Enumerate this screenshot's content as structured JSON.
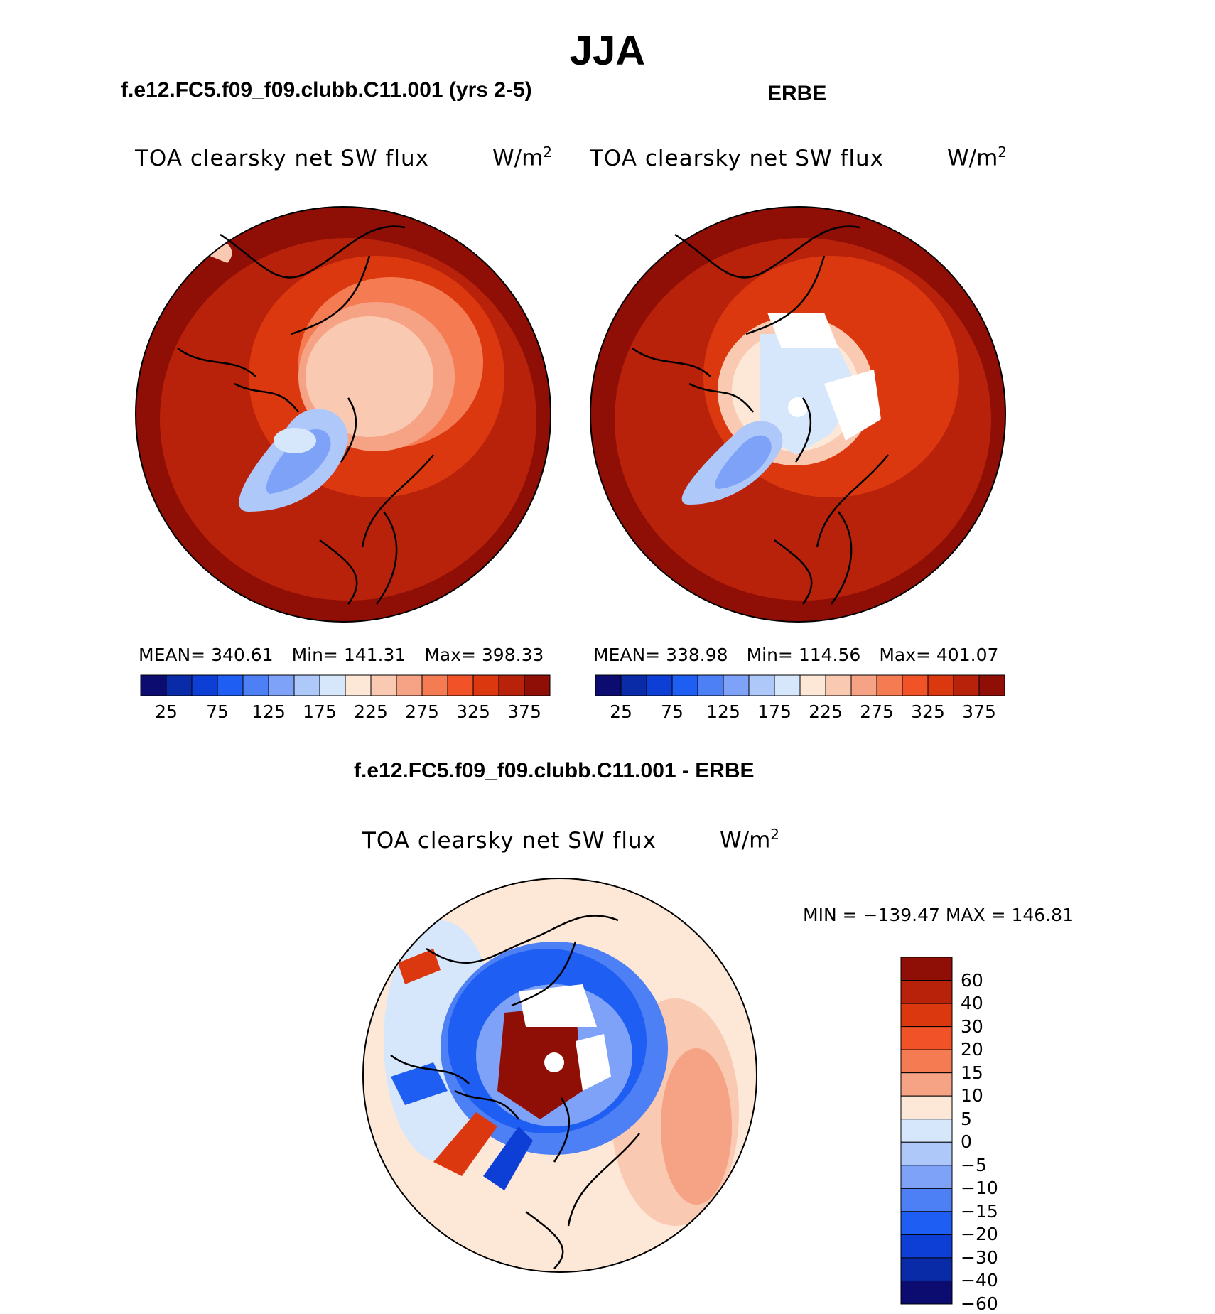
{
  "figure": {
    "season": "JJA",
    "left_case_title": "f.e12.FC5.f09_f09.clubb.C11.001 (yrs 2-5)",
    "right_case_title": "ERBE",
    "diff_case_title": "f.e12.FC5.f09_f09.clubb.C11.001 - ERBE"
  },
  "panels": {
    "model": {
      "variable": "TOA clearsky net SW flux",
      "units": "W/m",
      "units_sup": "2",
      "mean_label": "MEAN=",
      "mean": "340.61",
      "min_label": "Min=",
      "min": "141.31",
      "max_label": "Max=",
      "max": "398.33"
    },
    "obs": {
      "variable": "TOA clearsky net SW flux",
      "units": "W/m",
      "units_sup": "2",
      "mean_label": "MEAN=",
      "mean": "338.98",
      "min_label": "Min=",
      "min": "114.56",
      "max_label": "Max=",
      "max": "401.07"
    },
    "diff": {
      "variable": "TOA clearsky net SW flux",
      "units": "W/m",
      "units_sup": "2",
      "minmax": "MIN = −139.47 MAX = 146.81"
    }
  },
  "colorbars": {
    "abs": {
      "colors": [
        "#0b0b70",
        "#0a2ba8",
        "#0d3fd6",
        "#1e5ef2",
        "#4d7ff5",
        "#7ea2f8",
        "#aec8fa",
        "#d6e7fb",
        "#fde8d8",
        "#f9c9b2",
        "#f6a284",
        "#f47b52",
        "#f15228",
        "#dc3810",
        "#b8220a",
        "#8f0e06"
      ],
      "tick_labels": [
        "25",
        "75",
        "125",
        "175",
        "225",
        "275",
        "325",
        "375"
      ]
    },
    "diff": {
      "colors": [
        "#8f0e06",
        "#b8220a",
        "#dc3810",
        "#f15228",
        "#f47b52",
        "#f6a284",
        "#fde8d8",
        "#d6e7fb",
        "#aec8fa",
        "#7ea2f8",
        "#4d7ff5",
        "#1e5ef2",
        "#0d3fd6",
        "#0a2ba8",
        "#0b0b70"
      ],
      "tick_labels": [
        "60",
        "40",
        "30",
        "20",
        "15",
        "10",
        "5",
        "0",
        "−5",
        "−10",
        "−15",
        "−20",
        "−30",
        "−40",
        "−60"
      ]
    }
  }
}
